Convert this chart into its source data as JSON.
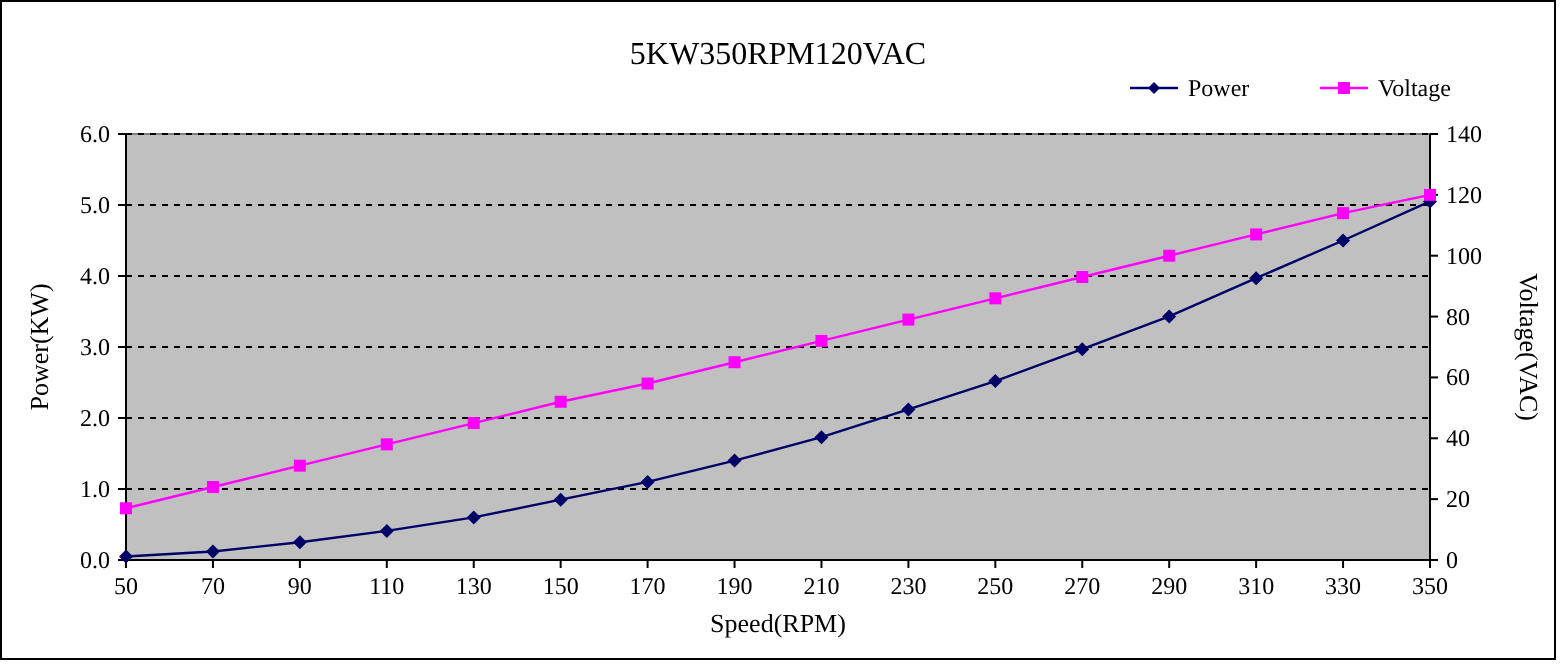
{
  "chart_data": {
    "type": "line",
    "title": "5KW350RPM120VAC",
    "xlabel": "Speed(RPM)",
    "ylabel": "Power(KW)",
    "y2label": "Voltage(VAC)",
    "x": [
      50,
      70,
      90,
      110,
      130,
      150,
      170,
      190,
      210,
      230,
      250,
      270,
      290,
      310,
      330,
      350
    ],
    "xlim": [
      50,
      350
    ],
    "xticks": [
      50,
      70,
      90,
      110,
      130,
      150,
      170,
      190,
      210,
      230,
      250,
      270,
      290,
      310,
      330,
      350
    ],
    "ylim": [
      0,
      6
    ],
    "yticks": [
      {
        "value": 0,
        "label": "0.0"
      },
      {
        "value": 1,
        "label": "1.0"
      },
      {
        "value": 2,
        "label": "2.0"
      },
      {
        "value": 3,
        "label": "3.0"
      },
      {
        "value": 4,
        "label": "4.0"
      },
      {
        "value": 5,
        "label": "5.0"
      },
      {
        "value": 6,
        "label": "6.0"
      }
    ],
    "y2lim": [
      0,
      140
    ],
    "y2ticks": [
      0,
      20,
      40,
      60,
      80,
      100,
      120,
      140
    ],
    "grid": "y",
    "legend": "top right",
    "line_style": "solid",
    "series": [
      {
        "name": "Power",
        "color": "#000066",
        "marker": "diamond",
        "values": [
          0.05,
          0.12,
          0.25,
          0.41,
          0.6,
          0.85,
          1.1,
          1.4,
          1.73,
          2.12,
          2.52,
          2.97,
          3.43,
          3.97,
          4.5,
          5.05
        ]
      },
      {
        "name": "Voltage",
        "color": "#ff00ff",
        "marker": "square",
        "axis": "y2",
        "values": [
          17,
          24,
          31,
          38,
          45,
          52,
          58,
          65,
          72,
          79,
          86,
          93,
          100,
          107,
          114,
          120
        ]
      }
    ]
  }
}
